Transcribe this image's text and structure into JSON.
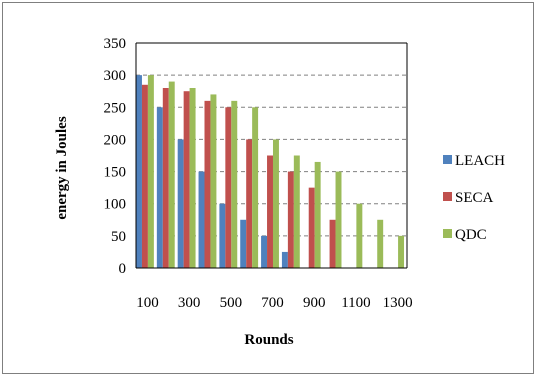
{
  "chart_data": {
    "type": "bar",
    "title": "",
    "xlabel": "Rounds",
    "ylabel": "energy in Joules",
    "categories": [
      "100",
      "200",
      "300",
      "400",
      "500",
      "600",
      "700",
      "800",
      "900",
      "1000",
      "1100",
      "1200",
      "1300"
    ],
    "x_tick_labels": [
      "100",
      "300",
      "500",
      "700",
      "900",
      "1100",
      "1300"
    ],
    "y_ticks": [
      "0",
      "50",
      "100",
      "150",
      "200",
      "250",
      "300",
      "350"
    ],
    "ylim": [
      0,
      350
    ],
    "grid": "horizontal dashed",
    "legend_position": "right",
    "series": [
      {
        "name": "LEACH",
        "color": "#4f81bd",
        "values": [
          300,
          250,
          200,
          150,
          100,
          75,
          50,
          25,
          0,
          0,
          0,
          0,
          0
        ]
      },
      {
        "name": "SECA",
        "color": "#c0504d",
        "values": [
          285,
          280,
          275,
          260,
          250,
          200,
          175,
          150,
          125,
          75,
          0,
          0,
          0
        ]
      },
      {
        "name": "QDC",
        "color": "#9bbb59",
        "values": [
          300,
          290,
          280,
          270,
          260,
          250,
          200,
          175,
          165,
          150,
          100,
          75,
          50
        ]
      }
    ]
  }
}
